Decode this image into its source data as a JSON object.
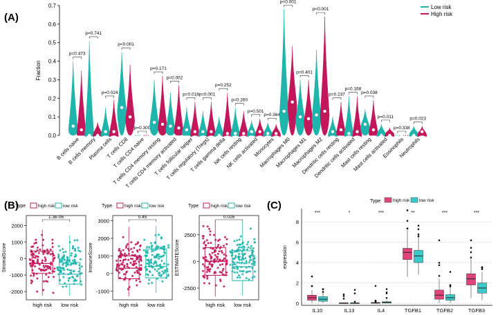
{
  "colors": {
    "low": "#1fb5ad",
    "high": "#c2185b",
    "low_fill": "#3cc9c9",
    "high_fill": "#e0447a",
    "axis": "#000000",
    "grid": "#b0b0b0"
  },
  "panel_labels": {
    "a": "(A)",
    "b": "(B)",
    "c": "(C)"
  },
  "chart_data": [
    {
      "id": "A",
      "type": "violin",
      "title": "",
      "ylabel": "Fraction",
      "ylim": [
        0,
        0.7
      ],
      "yticks": [
        "0.0",
        "0.1",
        "0.2",
        "0.3",
        "0.4",
        "0.5",
        "0.6",
        "0.7"
      ],
      "legend": {
        "entries": [
          "Low risk",
          "High risk"
        ],
        "placement": "top-right"
      },
      "categories": [
        "B cells naive",
        "B cells memory",
        "Plasma cells",
        "T cells CD8",
        "T cells CD4 naive",
        "T cells CD4 memory resting",
        "T cells CD4 memory activated",
        "T cells follicular helper",
        "T cells regulatory (Tregs)",
        "T cells gamma delta",
        "NK cells resting",
        "NK cells activated",
        "Monocytes",
        "Macrophages M0",
        "Macrophages M1",
        "Macrophages M2",
        "Dendritic cells resting",
        "Dendritic cells activated",
        "Mast cells resting",
        "Mast cells activated",
        "Eosinophils",
        "Neutrophils"
      ],
      "pvalues": [
        "p=0.473",
        "p=0.741",
        "p=0.024",
        "p<0.001",
        "p=0.300",
        "p=0.171",
        "p=0.002",
        "p=0.018",
        "p=0.001",
        "p=0.252",
        "p=0.260",
        "p=0.501",
        "p=0.364",
        "p<0.001",
        "p=0.401",
        "p<0.001",
        "p=0.237",
        "p=0.168",
        "p=0.038",
        "p=0.011",
        "p=0.338",
        "p=0.023"
      ],
      "series": [
        {
          "name": "Low risk",
          "max": [
            0.4,
            0.51,
            0.15,
            0.45,
            0.0,
            0.3,
            0.23,
            0.15,
            0.13,
            0.1,
            0.15,
            0.08,
            0.07,
            0.68,
            0.3,
            0.46,
            0.1,
            0.21,
            0.14,
            0.06,
            0.0,
            0.05
          ],
          "median": [
            0.05,
            0.0,
            0.02,
            0.15,
            0.0,
            0.07,
            0.05,
            0.03,
            0.02,
            0.0,
            0.01,
            0.02,
            0.01,
            0.13,
            0.1,
            0.11,
            0.02,
            0.01,
            0.06,
            0.0,
            0.0,
            0.0
          ]
        },
        {
          "name": "High risk",
          "max": [
            0.35,
            0.07,
            0.19,
            0.38,
            0.0,
            0.32,
            0.27,
            0.18,
            0.18,
            0.23,
            0.13,
            0.09,
            0.06,
            0.48,
            0.3,
            0.64,
            0.18,
            0.21,
            0.19,
            0.04,
            0.0,
            0.05
          ],
          "median": [
            0.03,
            0.0,
            0.02,
            0.1,
            0.0,
            0.06,
            0.04,
            0.02,
            0.02,
            0.01,
            0.01,
            0.02,
            0.01,
            0.18,
            0.09,
            0.13,
            0.03,
            0.02,
            0.03,
            0.0,
            0.0,
            0.02
          ]
        }
      ]
    },
    {
      "id": "B1",
      "type": "box",
      "legend_title": "Type",
      "legend": [
        "high risk",
        "low risk"
      ],
      "ylabel": "StromalScore",
      "categories": [
        "high risk",
        "low risk"
      ],
      "ylim": [
        -2500,
        2600
      ],
      "yticks": [
        -2000,
        -1000,
        0,
        1000,
        2000
      ],
      "pvalue": "1.3e-06",
      "boxes": [
        {
          "q1": -900,
          "median": -300,
          "q3": 450,
          "min": -2250,
          "max": 1750
        },
        {
          "q1": -1550,
          "median": -950,
          "q3": -250,
          "min": -2250,
          "max": 1400
        }
      ]
    },
    {
      "id": "B2",
      "type": "box",
      "legend_title": "Type",
      "legend": [
        "high risk",
        "low risk"
      ],
      "ylabel": "ImmuneScore",
      "categories": [
        "high risk",
        "low risk"
      ],
      "ylim": [
        -1500,
        3300
      ],
      "yticks": [
        -1000,
        0,
        1000,
        2000,
        3000
      ],
      "pvalue": "0.45",
      "boxes": [
        {
          "q1": -300,
          "median": 300,
          "q3": 1000,
          "min": -1300,
          "max": 2650
        },
        {
          "q1": -250,
          "median": 400,
          "q3": 1400,
          "min": -1100,
          "max": 2700
        }
      ]
    },
    {
      "id": "B3",
      "type": "box",
      "legend_title": "Type",
      "legend": [
        "high risk",
        "low risk"
      ],
      "ylabel": "ESTIMATEScore",
      "categories": [
        "high risk",
        "low risk"
      ],
      "ylim": [
        -3600,
        4300
      ],
      "yticks": [
        -2500,
        0,
        2500
      ],
      "pvalue": "0.026",
      "boxes": [
        {
          "q1": -1300,
          "median": 0,
          "q3": 1300,
          "min": -3300,
          "max": 3800
        },
        {
          "q1": -1800,
          "median": -500,
          "q3": 1000,
          "min": -3200,
          "max": 3700
        }
      ]
    },
    {
      "id": "C",
      "type": "box",
      "legend_title": "Type",
      "legend": [
        "high risk",
        "low risk"
      ],
      "ylabel": "expression",
      "ylim": [
        -0.2,
        9.3
      ],
      "yticks": [
        0,
        2,
        4,
        6,
        8
      ],
      "categories": [
        "IL10",
        "IL13",
        "IL4",
        "TGFB1",
        "TGFB2",
        "TGFB3"
      ],
      "significance": [
        "***",
        "*",
        "***",
        "**",
        "***",
        "***"
      ],
      "series": [
        {
          "name": "high risk",
          "boxes": [
            {
              "q1": 0.3,
              "median": 0.55,
              "q3": 0.8,
              "min": 0.0,
              "max": 1.3
            },
            {
              "q1": 0.0,
              "median": 0.02,
              "q3": 0.05,
              "min": 0.0,
              "max": 0.1
            },
            {
              "q1": 0.0,
              "median": 0.03,
              "q3": 0.08,
              "min": 0.0,
              "max": 0.15
            },
            {
              "q1": 4.3,
              "median": 5.0,
              "q3": 5.4,
              "min": 2.6,
              "max": 7.2
            },
            {
              "q1": 0.4,
              "median": 0.8,
              "q3": 1.3,
              "min": 0.0,
              "max": 2.4
            },
            {
              "q1": 1.8,
              "median": 2.4,
              "q3": 2.9,
              "min": 0.5,
              "max": 4.5
            }
          ]
        },
        {
          "name": "low risk",
          "boxes": [
            {
              "q1": 0.2,
              "median": 0.4,
              "q3": 0.65,
              "min": 0.0,
              "max": 1.1
            },
            {
              "q1": 0.0,
              "median": 0.02,
              "q3": 0.05,
              "min": 0.0,
              "max": 0.1
            },
            {
              "q1": 0.02,
              "median": 0.08,
              "q3": 0.15,
              "min": 0.0,
              "max": 0.3
            },
            {
              "q1": 4.0,
              "median": 4.65,
              "q3": 5.2,
              "min": 2.8,
              "max": 6.5
            },
            {
              "q1": 0.3,
              "median": 0.55,
              "q3": 0.85,
              "min": 0.0,
              "max": 1.6
            },
            {
              "q1": 1.0,
              "median": 1.5,
              "q3": 2.0,
              "min": 0.3,
              "max": 3.1
            }
          ]
        }
      ]
    }
  ]
}
